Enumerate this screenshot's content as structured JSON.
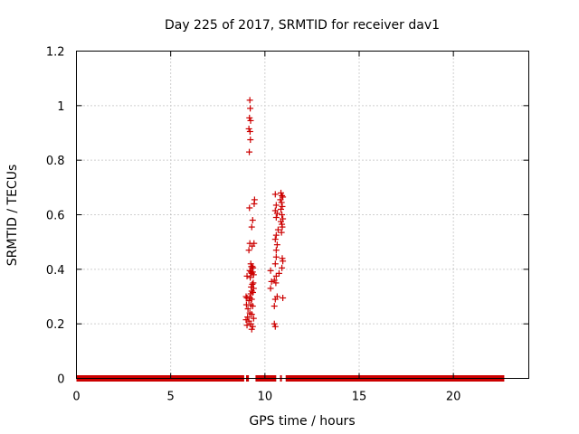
{
  "chart_data": {
    "type": "scatter",
    "title": "Day 225 of 2017, SRMTID for receiver dav1",
    "xlabel": "GPS time / hours",
    "ylabel": "SRMTID / TECUs",
    "xlim": [
      0,
      24
    ],
    "ylim": [
      0,
      1.2
    ],
    "xticks": [
      0,
      5,
      10,
      15,
      20
    ],
    "yticks": [
      0,
      0.2,
      0.4,
      0.6,
      0.8,
      1,
      1.2
    ],
    "xtick_labels": [
      "0",
      "5",
      "10",
      "15",
      "20"
    ],
    "ytick_labels": [
      "0",
      "0.2",
      "0.4",
      "0.6",
      "0.8",
      "1",
      "1.2"
    ],
    "grid": true,
    "marker": "+",
    "color": "#cc0000",
    "baseline": {
      "value": 0,
      "segments": [
        [
          0,
          8.9
        ],
        [
          9.0,
          9.15
        ],
        [
          9.5,
          10.6
        ],
        [
          10.8,
          10.9
        ],
        [
          11.1,
          22.7
        ]
      ]
    },
    "series": [
      {
        "name": "dav1",
        "points": [
          [
            9.2,
            1.02
          ],
          [
            9.22,
            0.99
          ],
          [
            9.18,
            0.955
          ],
          [
            9.24,
            0.945
          ],
          [
            9.15,
            0.915
          ],
          [
            9.21,
            0.905
          ],
          [
            9.23,
            0.875
          ],
          [
            9.17,
            0.83
          ],
          [
            9.45,
            0.655
          ],
          [
            9.43,
            0.64
          ],
          [
            9.18,
            0.625
          ],
          [
            9.35,
            0.58
          ],
          [
            9.3,
            0.555
          ],
          [
            9.2,
            0.495
          ],
          [
            9.42,
            0.495
          ],
          [
            9.32,
            0.485
          ],
          [
            9.15,
            0.47
          ],
          [
            9.05,
            0.375
          ],
          [
            9.25,
            0.42
          ],
          [
            9.28,
            0.41
          ],
          [
            9.33,
            0.41
          ],
          [
            9.37,
            0.405
          ],
          [
            9.2,
            0.395
          ],
          [
            9.26,
            0.39
          ],
          [
            9.3,
            0.385
          ],
          [
            9.35,
            0.39
          ],
          [
            9.4,
            0.38
          ],
          [
            9.22,
            0.37
          ],
          [
            9.38,
            0.35
          ],
          [
            9.33,
            0.345
          ],
          [
            9.27,
            0.335
          ],
          [
            9.4,
            0.33
          ],
          [
            9.3,
            0.32
          ],
          [
            9.36,
            0.315
          ],
          [
            9.25,
            0.31
          ],
          [
            9.0,
            0.3
          ],
          [
            9.05,
            0.295
          ],
          [
            9.2,
            0.295
          ],
          [
            9.3,
            0.29
          ],
          [
            9.15,
            0.285
          ],
          [
            9.02,
            0.27
          ],
          [
            9.25,
            0.27
          ],
          [
            9.35,
            0.265
          ],
          [
            9.1,
            0.255
          ],
          [
            9.2,
            0.24
          ],
          [
            9.3,
            0.235
          ],
          [
            9.08,
            0.225
          ],
          [
            9.4,
            0.22
          ],
          [
            9.0,
            0.215
          ],
          [
            9.15,
            0.21
          ],
          [
            9.25,
            0.2
          ],
          [
            9.05,
            0.195
          ],
          [
            9.35,
            0.19
          ],
          [
            9.3,
            0.18
          ],
          [
            10.55,
            0.675
          ],
          [
            10.85,
            0.68
          ],
          [
            10.9,
            0.67
          ],
          [
            10.95,
            0.665
          ],
          [
            10.82,
            0.655
          ],
          [
            10.88,
            0.645
          ],
          [
            10.6,
            0.635
          ],
          [
            10.92,
            0.63
          ],
          [
            10.85,
            0.62
          ],
          [
            10.55,
            0.615
          ],
          [
            10.65,
            0.605
          ],
          [
            10.9,
            0.6
          ],
          [
            10.6,
            0.59
          ],
          [
            10.95,
            0.585
          ],
          [
            10.85,
            0.575
          ],
          [
            10.9,
            0.565
          ],
          [
            10.92,
            0.555
          ],
          [
            10.7,
            0.545
          ],
          [
            10.88,
            0.535
          ],
          [
            10.6,
            0.525
          ],
          [
            10.55,
            0.51
          ],
          [
            10.65,
            0.49
          ],
          [
            10.6,
            0.47
          ],
          [
            10.6,
            0.445
          ],
          [
            10.92,
            0.44
          ],
          [
            10.95,
            0.43
          ],
          [
            10.55,
            0.42
          ],
          [
            10.9,
            0.405
          ],
          [
            10.3,
            0.395
          ],
          [
            10.75,
            0.385
          ],
          [
            10.6,
            0.375
          ],
          [
            10.5,
            0.36
          ],
          [
            10.35,
            0.355
          ],
          [
            10.58,
            0.35
          ],
          [
            10.3,
            0.33
          ],
          [
            10.65,
            0.3
          ],
          [
            10.95,
            0.295
          ],
          [
            10.55,
            0.29
          ],
          [
            10.5,
            0.265
          ],
          [
            10.5,
            0.2
          ],
          [
            10.55,
            0.19
          ]
        ]
      }
    ]
  }
}
